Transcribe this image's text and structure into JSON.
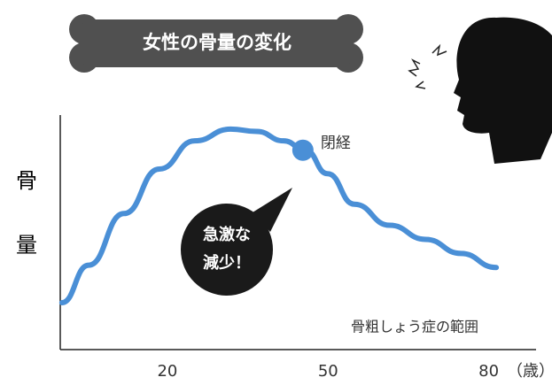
{
  "chart_data": {
    "type": "line",
    "title": "女性の骨量の変化",
    "y_label": [
      "骨",
      "量"
    ],
    "x_unit": "（歳）",
    "x": [
      0.3,
      5.3,
      11.9,
      18.5,
      25.1,
      31.8,
      36.7,
      41.7,
      45.8,
      49.9,
      54.9,
      61.5,
      68.2,
      74.8,
      81.4
    ],
    "values": [
      20,
      36,
      58,
      77,
      89,
      94,
      93,
      89,
      85,
      75,
      62,
      53,
      47,
      41,
      35
    ],
    "color": "#4a8fd6",
    "xlim": [
      0,
      88
    ],
    "ylim": [
      0,
      100
    ],
    "xticks": [
      20,
      50,
      80
    ],
    "annotations": {
      "menopause": {
        "label": "閉経",
        "x": 45.3,
        "y": 85
      },
      "sharp_drop": [
        "急激な",
        "減少！"
      ],
      "osteoporosis": "骨粗しょう症の範囲"
    }
  }
}
